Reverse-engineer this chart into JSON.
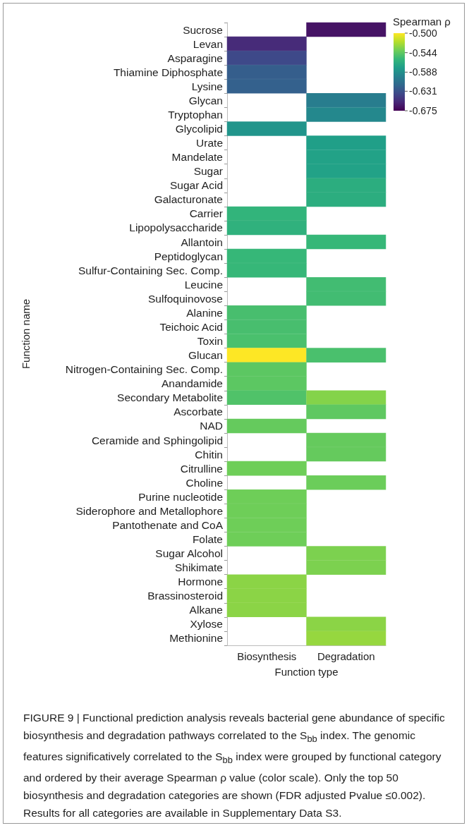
{
  "chart_data": {
    "type": "heatmap",
    "xlabel": "Function type",
    "ylabel": "Function name",
    "clabel": "Spearman ρ",
    "categories": [
      "Biosynthesis",
      "Degradation"
    ],
    "y_categories": [
      "Sucrose",
      "Levan",
      "Asparagine",
      "Thiamine Diphosphate",
      "Lysine",
      "Glycan",
      "Tryptophan",
      "Glycolipid",
      "Urate",
      "Mandelate",
      "Sugar",
      "Sugar Acid",
      "Galacturonate",
      "Carrier",
      "Lipopolysaccharide",
      "Allantoin",
      "Peptidoglycan",
      "Sulfur-Containing Sec. Comp.",
      "Leucine",
      "Sulfoquinovose",
      "Alanine",
      "Teichoic Acid",
      "Toxin",
      "Glucan",
      "Nitrogen-Containing Sec. Comp.",
      "Anandamide",
      "Secondary Metabolite",
      "Ascorbate",
      "NAD",
      "Ceramide and Sphingolipid",
      "Chitin",
      "Citrulline",
      "Choline",
      "Purine nucleotide",
      "Siderophore and Metallophore",
      "Pantothenate and CoA",
      "Folate",
      "Sugar Alcohol",
      "Shikimate",
      "Hormone",
      "Brassinosteroid",
      "Alkane",
      "Xylose",
      "Methionine"
    ],
    "cells": [
      [
        null,
        -0.666
      ],
      [
        -0.654,
        null
      ],
      [
        -0.636,
        null
      ],
      [
        -0.623,
        null
      ],
      [
        -0.621,
        null
      ],
      [
        null,
        -0.601
      ],
      [
        null,
        -0.593
      ],
      [
        -0.584,
        null
      ],
      [
        null,
        -0.577
      ],
      [
        null,
        -0.575
      ],
      [
        null,
        -0.575
      ],
      [
        null,
        -0.566
      ],
      [
        null,
        -0.566
      ],
      [
        -0.561,
        null
      ],
      [
        -0.563,
        null
      ],
      [
        null,
        -0.558
      ],
      [
        -0.558,
        null
      ],
      [
        -0.558,
        null
      ],
      [
        null,
        -0.554
      ],
      [
        null,
        -0.554
      ],
      [
        -0.552,
        null
      ],
      [
        -0.552,
        null
      ],
      [
        -0.551,
        null
      ],
      [
        -0.5,
        -0.551
      ],
      [
        -0.545,
        null
      ],
      [
        -0.545,
        null
      ],
      [
        -0.549,
        -0.533
      ],
      [
        null,
        -0.544
      ],
      [
        -0.542,
        null
      ],
      [
        null,
        -0.542
      ],
      [
        null,
        -0.542
      ],
      [
        -0.539,
        null
      ],
      [
        null,
        -0.54
      ],
      [
        -0.539,
        null
      ],
      [
        -0.539,
        null
      ],
      [
        -0.539,
        null
      ],
      [
        -0.539,
        null
      ],
      [
        null,
        -0.535
      ],
      [
        null,
        -0.535
      ],
      [
        -0.531,
        null
      ],
      [
        -0.531,
        null
      ],
      [
        -0.531,
        null
      ],
      [
        null,
        -0.531
      ],
      [
        null,
        -0.528
      ]
    ],
    "clim": [
      -0.675,
      -0.5
    ],
    "cticks": [
      {
        "value": -0.5,
        "label": "-0.500"
      },
      -0.544,
      -0.588,
      -0.631,
      -0.675
    ],
    "annotations": [
      "FIGURE 9 | Functional prediction analysis reveals bacterial gene abundance of specific biosynthesis and degradation pathways correlated to the S$_{bb}$ index. The genomic features significatively correlated to the S$_{bb}$ index were grouped by functional category and ordered by their average Spearman ρ value (color scale). Only the top 50 biosynthesis and degradation categories are shown (FDR adjusted Pvalue ≤0.002). Results for all categories are available in Supplementary Data S3."
    ]
  }
}
